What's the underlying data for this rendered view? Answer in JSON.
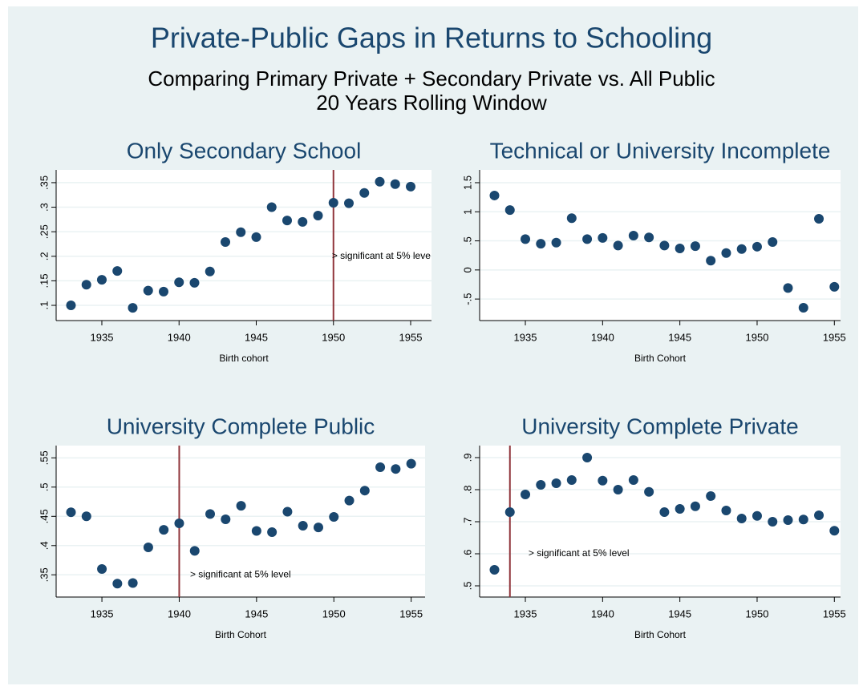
{
  "title": "Private-Public Gaps in Returns to Schooling",
  "subtitle": [
    "Comparing Primary Private + Secondary Private vs. All Public",
    "20 Years Rolling Window"
  ],
  "chart_data": [
    {
      "type": "scatter",
      "title": "Only Secondary School",
      "xlabel": "Birth cohort",
      "color": "#1a476f",
      "grid": true,
      "x": [
        1933,
        1934,
        1935,
        1936,
        1937,
        1938,
        1939,
        1940,
        1941,
        1942,
        1943,
        1944,
        1945,
        1946,
        1947,
        1948,
        1949,
        1950,
        1951,
        1952,
        1953,
        1954,
        1955
      ],
      "values": [
        0.1,
        0.142,
        0.152,
        0.17,
        0.095,
        0.13,
        0.128,
        0.147,
        0.146,
        0.169,
        0.229,
        0.249,
        0.239,
        0.3,
        0.273,
        0.27,
        0.283,
        0.309,
        0.308,
        0.329,
        0.352,
        0.347,
        0.342
      ],
      "xlim": [
        1932.04,
        1956.35
      ],
      "xticks": [
        1935,
        1940,
        1945,
        1950,
        1955
      ],
      "ylim": [
        0.069,
        0.376
      ],
      "yticks": [
        {
          "value": 0.1,
          "label": ".1"
        },
        {
          "value": 0.15,
          "label": ".15"
        },
        {
          "value": 0.2,
          "label": ".2"
        },
        {
          "value": 0.25,
          "label": ".25"
        },
        {
          "value": 0.3,
          "label": ".3"
        },
        {
          "value": 0.35,
          "label": ".35"
        }
      ],
      "vline": 1950,
      "vline_color": "#90353b",
      "annotation": {
        "text": "> significant at 5% leve",
        "x": 1949.9,
        "y": 0.2
      }
    },
    {
      "type": "scatter",
      "title": "Technical or University Incomplete",
      "xlabel": "Birth Cohort",
      "color": "#1a476f",
      "grid": true,
      "x": [
        1933,
        1934,
        1935,
        1936,
        1937,
        1938,
        1939,
        1940,
        1941,
        1942,
        1943,
        1944,
        1945,
        1946,
        1947,
        1948,
        1949,
        1950,
        1951,
        1952,
        1953,
        1954,
        1955
      ],
      "values": [
        1.28,
        1.03,
        0.53,
        0.45,
        0.47,
        0.89,
        0.53,
        0.55,
        0.42,
        0.59,
        0.56,
        0.42,
        0.37,
        0.41,
        0.16,
        0.29,
        0.36,
        0.4,
        0.48,
        -0.31,
        -0.65,
        0.88,
        -0.29
      ],
      "xlim": [
        1932.04,
        1955.4
      ],
      "xticks": [
        1935,
        1940,
        1945,
        1950,
        1955
      ],
      "ylim": [
        -0.87,
        1.72
      ],
      "yticks": [
        {
          "value": -0.5,
          "label": "-.5"
        },
        0,
        {
          "value": 0.5,
          "label": ".5"
        },
        1,
        1.5
      ]
    },
    {
      "type": "scatter",
      "title": "University Complete Public",
      "xlabel": "Birth Cohort",
      "color": "#1a476f",
      "grid": true,
      "x": [
        1933,
        1934,
        1935,
        1936,
        1937,
        1938,
        1939,
        1940,
        1941,
        1942,
        1943,
        1944,
        1945,
        1946,
        1947,
        1948,
        1949,
        1950,
        1951,
        1952,
        1953,
        1954,
        1955
      ],
      "values": [
        0.457,
        0.45,
        0.36,
        0.335,
        0.336,
        0.397,
        0.427,
        0.438,
        0.391,
        0.454,
        0.445,
        0.468,
        0.425,
        0.423,
        0.458,
        0.434,
        0.431,
        0.449,
        0.477,
        0.494,
        0.534,
        0.531,
        0.54
      ],
      "xlim": [
        1932.04,
        1955.9
      ],
      "xticks": [
        1935,
        1940,
        1945,
        1950,
        1955
      ],
      "ylim": [
        0.312,
        0.571
      ],
      "yticks": [
        {
          "value": 0.35,
          "label": ".35"
        },
        {
          "value": 0.4,
          "label": ".4"
        },
        {
          "value": 0.45,
          "label": ".45"
        },
        {
          "value": 0.5,
          "label": ".5"
        },
        {
          "value": 0.55,
          "label": ".55"
        }
      ],
      "vline": 1940,
      "vline_color": "#90353b",
      "annotation": {
        "text": "> significant at 5% level",
        "x": 1940.7,
        "y": 0.35
      }
    },
    {
      "type": "scatter",
      "title": "University Complete Private",
      "xlabel": "Birth Cohort",
      "color": "#1a476f",
      "grid": true,
      "x": [
        1933,
        1934,
        1935,
        1936,
        1937,
        1938,
        1939,
        1940,
        1941,
        1942,
        1943,
        1944,
        1945,
        1946,
        1947,
        1948,
        1949,
        1950,
        1951,
        1952,
        1953,
        1954,
        1955
      ],
      "values": [
        0.55,
        0.73,
        0.785,
        0.815,
        0.82,
        0.83,
        0.9,
        0.828,
        0.8,
        0.83,
        0.793,
        0.73,
        0.74,
        0.748,
        0.78,
        0.735,
        0.71,
        0.718,
        0.7,
        0.705,
        0.707,
        0.72,
        0.672
      ],
      "xlim": [
        1932.04,
        1955.4
      ],
      "xticks": [
        1935,
        1940,
        1945,
        1950,
        1955
      ],
      "ylim": [
        0.465,
        0.9375
      ],
      "yticks": [
        {
          "value": 0.5,
          "label": ".5"
        },
        {
          "value": 0.6,
          "label": ".6"
        },
        {
          "value": 0.7,
          "label": ".7"
        },
        {
          "value": 0.8,
          "label": ".8"
        },
        {
          "value": 0.9,
          "label": ".9"
        }
      ],
      "vline": 1934,
      "vline_color": "#90353b",
      "annotation": {
        "text": "> significant at 5% level",
        "x": 1935.2,
        "y": 0.6
      }
    }
  ]
}
